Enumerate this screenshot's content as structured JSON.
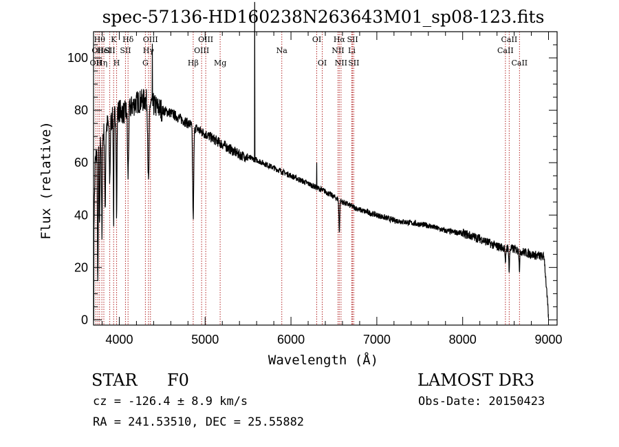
{
  "chart_data": {
    "type": "line",
    "title": "spec-57136-HD160238N263643M01_sp08-123.fits",
    "xlabel": "Wavelength (Å)",
    "ylabel": "Flux (relative)",
    "xlim": [
      3700,
      9100
    ],
    "ylim": [
      -2,
      110
    ],
    "xticks": [
      4000,
      5000,
      6000,
      7000,
      8000,
      9000
    ],
    "xtick_labels": [
      "4000",
      "5000",
      "6000",
      "7000",
      "8000",
      "9000"
    ],
    "yticks": [
      0,
      20,
      40,
      60,
      80,
      100
    ],
    "ytick_labels": [
      "0",
      "20",
      "40",
      "60",
      "80",
      "100"
    ],
    "continuum": [
      [
        3700,
        30
      ],
      [
        3720,
        60
      ],
      [
        3760,
        68
      ],
      [
        3800,
        70
      ],
      [
        3850,
        74
      ],
      [
        3900,
        76
      ],
      [
        3950,
        78
      ],
      [
        4000,
        80
      ],
      [
        4050,
        79
      ],
      [
        4100,
        80
      ],
      [
        4200,
        83
      ],
      [
        4300,
        84
      ],
      [
        4400,
        82
      ],
      [
        4500,
        80
      ],
      [
        4600,
        79
      ],
      [
        4700,
        77
      ],
      [
        4800,
        75
      ],
      [
        4900,
        73
      ],
      [
        5000,
        71
      ],
      [
        5100,
        69
      ],
      [
        5200,
        67
      ],
      [
        5400,
        63
      ],
      [
        5600,
        61
      ],
      [
        5800,
        58
      ],
      [
        6000,
        55
      ],
      [
        6200,
        52
      ],
      [
        6400,
        49
      ],
      [
        6600,
        45
      ],
      [
        6800,
        42
      ],
      [
        7000,
        40
      ],
      [
        7200,
        38
      ],
      [
        7400,
        37
      ],
      [
        7600,
        36
      ],
      [
        7800,
        34
      ],
      [
        8000,
        33
      ],
      [
        8200,
        31
      ],
      [
        8400,
        28
      ],
      [
        8600,
        27
      ],
      [
        8800,
        25
      ],
      [
        8950,
        24
      ],
      [
        9000,
        1
      ]
    ],
    "absorption_features": [
      {
        "wave": 3750,
        "depth": 55,
        "width": 6
      },
      {
        "wave": 3770,
        "depth": 35,
        "width": 6
      },
      {
        "wave": 3798,
        "depth": 40,
        "width": 6
      },
      {
        "wave": 3835,
        "depth": 30,
        "width": 7
      },
      {
        "wave": 3889,
        "depth": 22,
        "width": 8
      },
      {
        "wave": 3934,
        "depth": 40,
        "width": 5
      },
      {
        "wave": 3969,
        "depth": 40,
        "width": 6
      },
      {
        "wave": 4102,
        "depth": 25,
        "width": 9
      },
      {
        "wave": 4340,
        "depth": 32,
        "width": 10
      },
      {
        "wave": 4861,
        "depth": 35,
        "width": 9
      },
      {
        "wave": 6563,
        "depth": 12,
        "width": 7
      },
      {
        "wave": 8498,
        "depth": 7,
        "width": 6
      },
      {
        "wave": 8542,
        "depth": 9,
        "width": 6
      },
      {
        "wave": 8662,
        "depth": 7,
        "width": 6
      }
    ],
    "spike_features": [
      {
        "wave": 4385,
        "height": 20
      },
      {
        "wave": 5577,
        "height": 60
      },
      {
        "wave": 6300,
        "height": 10
      }
    ],
    "line_markers": [
      {
        "wave": 3727,
        "row": 2,
        "label": "OII"
      },
      {
        "wave": 3750,
        "row": 1,
        "label": "OII"
      },
      {
        "wave": 3770,
        "row": 0,
        "label": "Hθ"
      },
      {
        "wave": 3797,
        "row": 2,
        "label": "Hη"
      },
      {
        "wave": 3820,
        "row": 1,
        "label": "HeI"
      },
      {
        "wave": 3889,
        "row": 1,
        "label": "SII"
      },
      {
        "wave": 3934,
        "row": 0,
        "label": "K"
      },
      {
        "wave": 3969,
        "row": 2,
        "label": "H"
      },
      {
        "wave": 4102,
        "row": 0,
        "label": "Hδ"
      },
      {
        "wave": 4072,
        "row": 1,
        "label": "SII"
      },
      {
        "wave": 4304,
        "row": 3,
        "label": "G"
      },
      {
        "wave": 4340,
        "row": 1,
        "label": "Hγ"
      },
      {
        "wave": 4363,
        "row": 0,
        "label": "OIII"
      },
      {
        "wave": 4861,
        "row": 2,
        "label": "Hβ"
      },
      {
        "wave": 4959,
        "row": 1,
        "label": "OIII"
      },
      {
        "wave": 5007,
        "row": 0,
        "label": "OIII"
      },
      {
        "wave": 5175,
        "row": 2,
        "label": "Mg"
      },
      {
        "wave": 5893,
        "row": 1,
        "label": "Na"
      },
      {
        "wave": 6300,
        "row": 0,
        "label": "OI"
      },
      {
        "wave": 6364,
        "row": 2,
        "label": "OI"
      },
      {
        "wave": 6548,
        "row": 1,
        "label": "NII"
      },
      {
        "wave": 6563,
        "row": 0,
        "label": "Hα"
      },
      {
        "wave": 6583,
        "row": 2,
        "label": "NII"
      },
      {
        "wave": 6708,
        "row": 1,
        "label": "Li"
      },
      {
        "wave": 6717,
        "row": 0,
        "label": "SII"
      },
      {
        "wave": 6731,
        "row": 2,
        "label": "SII"
      },
      {
        "wave": 8498,
        "row": 1,
        "label": "CaII"
      },
      {
        "wave": 8542,
        "row": 0,
        "label": "CaII"
      },
      {
        "wave": 8662,
        "row": 2,
        "label": "CaII"
      }
    ],
    "marker_color": "#b22222",
    "line_color": "#000000"
  },
  "info": {
    "object_class": "STAR",
    "subclass": "F0",
    "survey": "LAMOST DR3",
    "redshift_text": "cz = -126.4 ± 8.9 km/s",
    "obs_date_text": "Obs-Date: 20150423",
    "coords_text": "RA = 241.53510, DEC =  25.55882"
  }
}
